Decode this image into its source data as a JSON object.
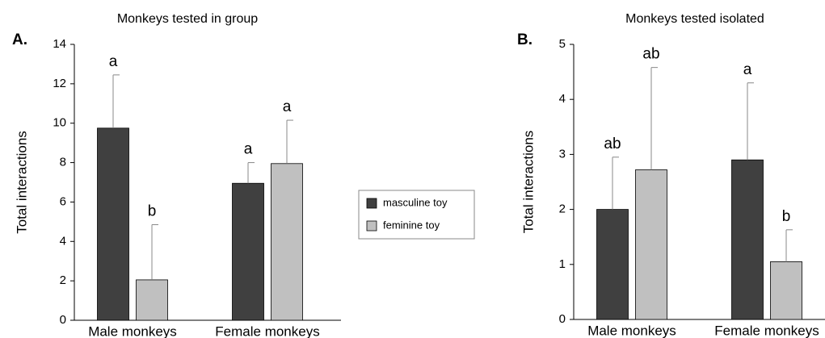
{
  "chart_data": [
    {
      "type": "bar",
      "panel_label": "A.",
      "title": "Monkeys tested in group",
      "y_label": "Total interactions",
      "categories": [
        "Male monkeys",
        "Female monkeys"
      ],
      "series": [
        {
          "values": [
            9.75,
            6.95
          ],
          "errors": [
            2.7,
            1.05
          ],
          "annotations": [
            "a",
            "a"
          ]
        },
        {
          "values": [
            2.05,
            7.95
          ],
          "errors": [
            2.8,
            2.2
          ],
          "annotations": [
            "b",
            "a"
          ]
        }
      ],
      "ylim": [
        0,
        14
      ],
      "yticks": [
        0,
        2,
        4,
        6,
        8,
        10,
        12,
        14
      ]
    },
    {
      "type": "bar",
      "panel_label": "B.",
      "title": "Monkeys tested isolated",
      "y_label": "Total interactions",
      "categories": [
        "Male monkeys",
        "Female monkeys"
      ],
      "series": [
        {
          "values": [
            2.0,
            2.9
          ],
          "errors": [
            0.95,
            1.4
          ],
          "annotations": [
            "ab",
            "a"
          ]
        },
        {
          "values": [
            2.72,
            1.05
          ],
          "errors": [
            1.86,
            0.58
          ],
          "annotations": [
            "ab",
            "b"
          ]
        }
      ],
      "ylim": [
        0,
        5
      ],
      "yticks": [
        0,
        1,
        2,
        3,
        4,
        5
      ]
    }
  ],
  "legend": {
    "entries": [
      {
        "name": "masculine toy",
        "color": "#404040"
      },
      {
        "name": "feminine toy",
        "color": "#c0c0c0"
      }
    ]
  }
}
